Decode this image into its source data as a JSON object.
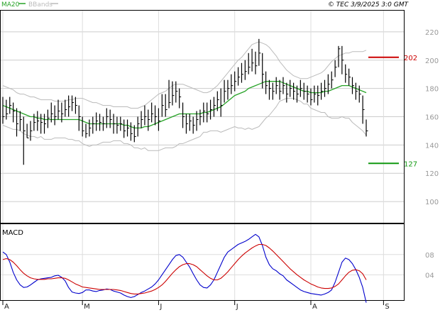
{
  "header": {
    "copyright": "© TEC 3/9/2025 3:0 GMT",
    "legend": [
      {
        "label": "MA20",
        "color": "#27a327"
      },
      {
        "label": "BBands",
        "color": "#bbbbbb"
      }
    ]
  },
  "chart_data": [
    {
      "type": "line",
      "panel": "price",
      "ylim": [
        85,
        235
      ],
      "yticks": [
        100,
        120,
        140,
        160,
        180,
        200,
        220
      ],
      "grid": true,
      "x_month_labels": [
        "A",
        "M",
        "J",
        "J",
        "A",
        "S"
      ],
      "x_month_index": [
        0,
        23,
        45,
        67,
        89,
        110
      ],
      "markers": [
        {
          "label": "202",
          "value": 202,
          "color": "#cc0000"
        },
        {
          "label": "127",
          "value": 127,
          "color": "#109910"
        }
      ],
      "colors": {
        "price": "#000000",
        "ma20": "#27a327",
        "bbands": "#bbbbbb"
      },
      "series": [
        {
          "kind": "ohlc",
          "close": [
            160,
            162,
            168,
            164,
            155,
            158,
            150,
            145,
            150,
            156,
            157,
            156,
            155,
            159,
            162,
            160,
            164,
            162,
            165,
            167,
            170,
            168,
            160,
            150,
            148,
            152,
            155,
            157,
            156,
            155,
            160,
            158,
            155,
            154,
            155,
            150,
            152,
            148,
            146,
            155,
            158,
            160,
            158,
            162,
            160,
            157,
            168,
            165,
            170,
            175,
            178,
            174,
            160,
            155,
            157,
            154,
            158,
            160,
            164,
            162,
            165,
            168,
            172,
            168,
            178,
            180,
            182,
            185,
            188,
            190,
            192,
            195,
            198,
            196,
            205,
            190,
            182,
            180,
            178,
            182,
            178,
            182,
            176,
            180,
            178,
            176,
            180,
            178,
            176,
            172,
            176,
            175,
            178,
            180,
            183,
            186,
            195,
            208,
            200,
            190,
            188,
            182,
            178,
            176,
            165,
            150
          ],
          "high": [
            174,
            172,
            174,
            170,
            166,
            164,
            160,
            155,
            157,
            162,
            164,
            162,
            162,
            165,
            170,
            168,
            172,
            170,
            172,
            175,
            175,
            174,
            168,
            160,
            155,
            158,
            160,
            163,
            162,
            160,
            166,
            165,
            162,
            160,
            160,
            158,
            158,
            156,
            154,
            160,
            164,
            168,
            165,
            170,
            168,
            166,
            176,
            176,
            186,
            185,
            185,
            180,
            170,
            162,
            162,
            160,
            164,
            165,
            170,
            170,
            172,
            174,
            178,
            180,
            186,
            186,
            190,
            192,
            195,
            198,
            200,
            205,
            208,
            206,
            215,
            205,
            192,
            186,
            184,
            188,
            186,
            188,
            184,
            186,
            184,
            182,
            186,
            184,
            182,
            180,
            182,
            182,
            184,
            186,
            190,
            192,
            200,
            210,
            210,
            197,
            194,
            188,
            184,
            182,
            175,
            158
          ],
          "low": [
            155,
            158,
            162,
            156,
            146,
            150,
            126,
            145,
            143,
            150,
            150,
            148,
            148,
            152,
            156,
            154,
            158,
            156,
            160,
            160,
            164,
            162,
            150,
            146,
            145,
            146,
            148,
            150,
            150,
            150,
            152,
            152,
            148,
            148,
            150,
            145,
            146,
            143,
            142,
            146,
            152,
            154,
            150,
            156,
            154,
            150,
            160,
            160,
            166,
            168,
            170,
            166,
            152,
            148,
            150,
            148,
            150,
            154,
            156,
            156,
            158,
            160,
            164,
            160,
            170,
            172,
            176,
            178,
            182,
            184,
            186,
            190,
            192,
            190,
            196,
            180,
            176,
            172,
            172,
            176,
            172,
            176,
            170,
            174,
            172,
            170,
            174,
            172,
            170,
            168,
            170,
            168,
            172,
            174,
            176,
            180,
            188,
            195,
            190,
            184,
            182,
            176,
            172,
            170,
            155,
            146
          ]
        },
        {
          "name": "MA20",
          "values": [
            168,
            167,
            166,
            165,
            164,
            163,
            162,
            161,
            160,
            160,
            159,
            159,
            158,
            158,
            158,
            158,
            158,
            158,
            158,
            158,
            158,
            158,
            158,
            157,
            156,
            155,
            155,
            155,
            155,
            155,
            155,
            155,
            155,
            155,
            155,
            154,
            154,
            153,
            152,
            152,
            152,
            153,
            153,
            154,
            155,
            156,
            157,
            158,
            159,
            160,
            161,
            162,
            162,
            162,
            162,
            162,
            162,
            162,
            163,
            163,
            164,
            165,
            166,
            167,
            169,
            171,
            173,
            175,
            176,
            177,
            178,
            180,
            181,
            182,
            183,
            184,
            185,
            185,
            185,
            185,
            185,
            184,
            183,
            182,
            181,
            180,
            179,
            178,
            178,
            177,
            177,
            177,
            177,
            178,
            178,
            179,
            180,
            181,
            182,
            182,
            182,
            181,
            180,
            179,
            178,
            177
          ]
        },
        {
          "name": "BBands upper",
          "values": [
            182,
            181,
            180,
            179,
            177,
            176,
            176,
            175,
            174,
            174,
            173,
            172,
            172,
            172,
            172,
            171,
            171,
            171,
            171,
            172,
            172,
            173,
            173,
            173,
            172,
            171,
            170,
            170,
            169,
            168,
            168,
            168,
            167,
            167,
            167,
            167,
            167,
            166,
            166,
            166,
            167,
            168,
            170,
            172,
            174,
            176,
            177,
            178,
            180,
            182,
            183,
            183,
            183,
            182,
            181,
            180,
            179,
            178,
            177,
            177,
            178,
            180,
            182,
            185,
            188,
            191,
            194,
            197,
            200,
            202,
            205,
            208,
            211,
            212,
            213,
            212,
            211,
            209,
            206,
            203,
            199,
            196,
            193,
            191,
            189,
            188,
            187,
            187,
            187,
            188,
            189,
            190,
            191,
            193,
            196,
            199,
            201,
            203,
            204,
            205,
            205,
            206,
            206,
            206,
            206,
            207
          ]
        },
        {
          "name": "BBands lower",
          "values": [
            154,
            153,
            152,
            151,
            151,
            150,
            148,
            147,
            146,
            146,
            145,
            146,
            144,
            144,
            144,
            145,
            145,
            145,
            145,
            144,
            144,
            143,
            143,
            141,
            140,
            139,
            140,
            140,
            141,
            142,
            142,
            142,
            143,
            143,
            143,
            141,
            141,
            140,
            138,
            138,
            137,
            138,
            136,
            136,
            136,
            136,
            137,
            138,
            138,
            138,
            139,
            141,
            141,
            142,
            143,
            144,
            145,
            146,
            149,
            149,
            150,
            150,
            150,
            149,
            150,
            151,
            152,
            153,
            152,
            152,
            151,
            152,
            151,
            152,
            153,
            156,
            159,
            161,
            164,
            167,
            171,
            172,
            173,
            173,
            173,
            172,
            171,
            169,
            169,
            166,
            165,
            164,
            163,
            163,
            160,
            159,
            159,
            159,
            160,
            159,
            159,
            156,
            154,
            152,
            150,
            147
          ]
        }
      ]
    },
    {
      "type": "line",
      "panel": "indicator",
      "title": "MACD",
      "ylim": [
        -1,
        14
      ],
      "yticks": [
        {
          "label": "04",
          "value": 4
        },
        {
          "label": "08",
          "value": 8
        }
      ],
      "grid": true,
      "series": [
        {
          "color": "#0000cc",
          "values": [
            8.5,
            8.0,
            6.5,
            4.5,
            3.0,
            2.0,
            1.5,
            1.6,
            2.0,
            2.5,
            3.0,
            3.2,
            3.3,
            3.4,
            3.5,
            3.8,
            3.9,
            3.5,
            2.8,
            1.5,
            0.6,
            0.4,
            0.3,
            0.5,
            1.0,
            1.0,
            0.8,
            0.7,
            0.9,
            1.0,
            1.2,
            1.1,
            0.8,
            0.6,
            0.4,
            0.0,
            -0.3,
            -0.5,
            -0.3,
            0.1,
            0.5,
            0.8,
            1.2,
            1.6,
            2.2,
            3.0,
            4.0,
            5.0,
            6.0,
            7.0,
            7.8,
            8.0,
            7.5,
            6.5,
            5.5,
            4.2,
            3.0,
            2.0,
            1.5,
            1.4,
            2.0,
            3.0,
            4.5,
            6.0,
            7.5,
            8.5,
            9.0,
            9.5,
            10.0,
            10.3,
            10.6,
            11.0,
            11.5,
            12.0,
            11.5,
            9.8,
            7.5,
            6.0,
            5.2,
            4.8,
            4.2,
            3.8,
            3.0,
            2.5,
            2.0,
            1.5,
            1.0,
            0.7,
            0.5,
            0.3,
            0.2,
            0.1,
            0.0,
            0.2,
            0.5,
            1.0,
            2.5,
            4.5,
            6.5,
            7.3,
            7.0,
            6.2,
            5.0,
            3.5,
            1.5,
            -1.5
          ]
        },
        {
          "color": "#cc0000",
          "values": [
            7.0,
            7.2,
            7.0,
            6.5,
            5.8,
            5.0,
            4.3,
            3.8,
            3.4,
            3.2,
            3.1,
            3.1,
            3.1,
            3.2,
            3.2,
            3.3,
            3.4,
            3.4,
            3.3,
            3.0,
            2.6,
            2.2,
            1.9,
            1.6,
            1.5,
            1.4,
            1.3,
            1.2,
            1.1,
            1.1,
            1.1,
            1.1,
            1.1,
            1.0,
            0.9,
            0.7,
            0.5,
            0.3,
            0.2,
            0.2,
            0.3,
            0.4,
            0.6,
            0.8,
            1.1,
            1.5,
            2.0,
            2.7,
            3.5,
            4.3,
            5.0,
            5.6,
            6.0,
            6.2,
            6.2,
            6.0,
            5.6,
            5.0,
            4.4,
            3.8,
            3.3,
            3.0,
            3.0,
            3.3,
            3.9,
            4.6,
            5.4,
            6.2,
            7.0,
            7.7,
            8.3,
            8.8,
            9.3,
            9.7,
            10.0,
            10.0,
            9.8,
            9.3,
            8.7,
            8.0,
            7.3,
            6.6,
            5.9,
            5.2,
            4.6,
            4.0,
            3.5,
            3.0,
            2.6,
            2.2,
            1.9,
            1.6,
            1.4,
            1.3,
            1.3,
            1.4,
            1.7,
            2.2,
            3.0,
            3.8,
            4.5,
            4.9,
            5.0,
            4.8,
            4.2,
            3.0
          ]
        }
      ]
    }
  ]
}
